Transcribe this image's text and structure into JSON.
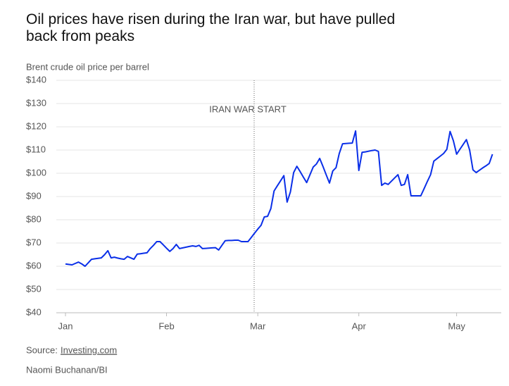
{
  "chart_data": {
    "type": "line",
    "title": "Oil prices have risen during the Iran war, but have pulled back from peaks",
    "subtitle": "Brent crude oil price per barrel",
    "annotation": "IRAN WAR START",
    "source_label": "Source:",
    "source": "Investing.com",
    "credit": "Naomi Buchanan/BI",
    "grid": true,
    "ylim": [
      40,
      140
    ],
    "yticks": [
      {
        "value": 40,
        "label": "$40"
      },
      {
        "value": 50,
        "label": "$50"
      },
      {
        "value": 60,
        "label": "$60"
      },
      {
        "value": 70,
        "label": "$70"
      },
      {
        "value": 80,
        "label": "$80"
      },
      {
        "value": 90,
        "label": "$90"
      },
      {
        "value": 100,
        "label": "$100"
      },
      {
        "value": 110,
        "label": "$110"
      },
      {
        "value": 120,
        "label": "$120"
      },
      {
        "value": 130,
        "label": "$130"
      },
      {
        "value": 140,
        "label": "$140"
      }
    ],
    "categories": [
      "Jan",
      null,
      null,
      null,
      null,
      null,
      null,
      null,
      null,
      null,
      null,
      null,
      null,
      null,
      null,
      null,
      null,
      null,
      null,
      null,
      null,
      null,
      null,
      null,
      null,
      null,
      null,
      null,
      null,
      null,
      null,
      "Feb",
      null,
      null,
      null,
      null,
      null,
      null,
      null,
      null,
      null,
      null,
      null,
      null,
      null,
      null,
      null,
      null,
      null,
      null,
      null,
      null,
      null,
      null,
      null,
      null,
      null,
      null,
      null,
      "Mar",
      null,
      null,
      null,
      null,
      null,
      null,
      null,
      null,
      null,
      null,
      null,
      null,
      null,
      null,
      null,
      null,
      null,
      null,
      null,
      null,
      null,
      null,
      null,
      null,
      null,
      null,
      null,
      null,
      null,
      null,
      "Apr",
      null,
      null,
      null,
      null,
      null,
      null,
      null,
      null,
      null,
      null,
      null,
      null,
      null,
      null,
      null,
      null,
      null,
      null,
      null,
      null,
      null,
      null,
      null,
      null,
      null,
      null,
      null,
      null,
      null,
      "May",
      null,
      null,
      null,
      null,
      null,
      null,
      null,
      null,
      null,
      null,
      null
    ],
    "series": [
      {
        "name": "Brent crude",
        "color": "#0a2fe8",
        "values": [
          61,
          60.8,
          60.6,
          61.2,
          61.8,
          61,
          60,
          61.5,
          63,
          63.2,
          63.4,
          63.6,
          65,
          66.7,
          63.6,
          63.9,
          63.5,
          63.2,
          63,
          64.2,
          63.6,
          63,
          65.2,
          65.4,
          65.6,
          65.8,
          67.6,
          69,
          70.6,
          70.6,
          69.2,
          67.8,
          66.4,
          67.6,
          69.4,
          67.6,
          67.9,
          68.2,
          68.5,
          68.8,
          68.5,
          69,
          67.6,
          67.7,
          67.8,
          67.9,
          68,
          67,
          69,
          71,
          71.1,
          71.1,
          71.2,
          71.2,
          70.6,
          70.6,
          70.6,
          72.4,
          74.2,
          76,
          77.6,
          81.2,
          81.5,
          84.8,
          92.4,
          94.6,
          96.8,
          99,
          87.6,
          92,
          100.3,
          103,
          100.7,
          98.3,
          96,
          99.4,
          102.7,
          104,
          106.4,
          102.9,
          99.3,
          95.8,
          101,
          102.4,
          108.5,
          112.7,
          112.8,
          112.9,
          113,
          118.2,
          101.2,
          109,
          109.2,
          109.5,
          109.8,
          110,
          109.4,
          94.8,
          95.8,
          95.2,
          96.6,
          98,
          99.4,
          94.8,
          95.2,
          99.4,
          90.3,
          90.3,
          90.3,
          90.3,
          93.3,
          96.4,
          99.4,
          105.2,
          106.3,
          107.4,
          108.5,
          110.3,
          118,
          114,
          108.2,
          110.3,
          112.4,
          114.5,
          110,
          101.5,
          100.3,
          101.3,
          102.3,
          103.2,
          104.2,
          108.2
        ]
      }
    ]
  }
}
